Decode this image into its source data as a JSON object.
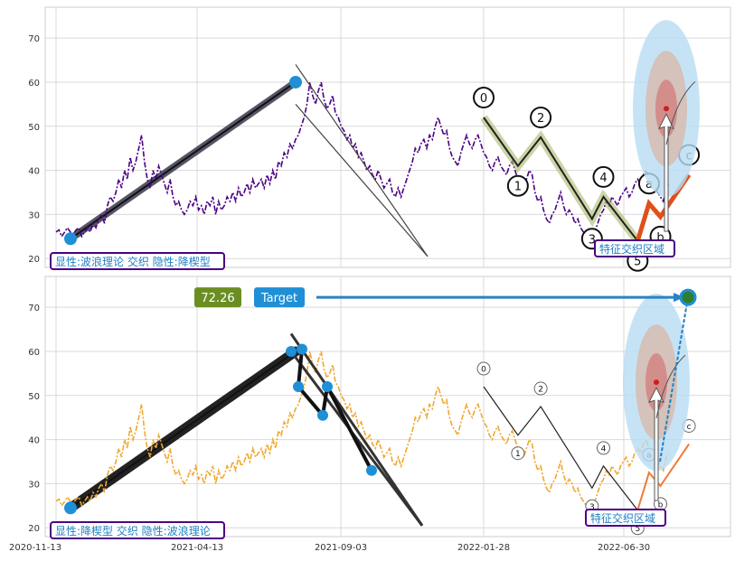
{
  "chart_data": [
    {
      "type": "line",
      "panel": "top",
      "ylim": [
        18,
        77
      ],
      "yticks": [
        20,
        30,
        40,
        50,
        60,
        70
      ],
      "grid": true,
      "price_color": "#4b0082",
      "series": [
        {
          "values": [
            26,
            26.5,
            25,
            26,
            27,
            26,
            25.5,
            26.5,
            27,
            25,
            26,
            27,
            26,
            28,
            27,
            29,
            30,
            28,
            32,
            34,
            33,
            35,
            38,
            36,
            40,
            38,
            43,
            40,
            42,
            45,
            48,
            42,
            38,
            36,
            40,
            38,
            41,
            39,
            37,
            35,
            38,
            34,
            32,
            33,
            31,
            30,
            31,
            33,
            32,
            34,
            31,
            32,
            30,
            33,
            32,
            34,
            30,
            33,
            31,
            32,
            34,
            33,
            35,
            33,
            36,
            34,
            35,
            37,
            35,
            38,
            36,
            37,
            38,
            36,
            39,
            37,
            40,
            38,
            42,
            41,
            44,
            43,
            46,
            45,
            47,
            48,
            50,
            52,
            55,
            60,
            57,
            55,
            58,
            60,
            56,
            54,
            55,
            57,
            53,
            52,
            50,
            49,
            47,
            48,
            45,
            46,
            43,
            44,
            42,
            40,
            41,
            39,
            38,
            40,
            38,
            36,
            37,
            38,
            35,
            34,
            36,
            34,
            36,
            38,
            40,
            42,
            45,
            44,
            46,
            47,
            45,
            48,
            47,
            50,
            52,
            50,
            48,
            49,
            45,
            43,
            42,
            41,
            44,
            46,
            48,
            46,
            45,
            47,
            48,
            46,
            44,
            43,
            41,
            40,
            42,
            43,
            41,
            40,
            39,
            41,
            42,
            40,
            38,
            37,
            36,
            38,
            40,
            39,
            35,
            33,
            34,
            31,
            29,
            28,
            30,
            31,
            33,
            35,
            32,
            30,
            31,
            30,
            28,
            29,
            27,
            26,
            25,
            24,
            23,
            26,
            28,
            30,
            31,
            33,
            32,
            34,
            33,
            32,
            34,
            35,
            36,
            34,
            35,
            37,
            38,
            37,
            39,
            40,
            38,
            37,
            36,
            35,
            34,
            33,
            36,
            37
          ]
        }
      ],
      "waves": {
        "labels": [
          "0",
          "1",
          "2",
          "3",
          "4",
          "5",
          "a",
          "b",
          "c"
        ],
        "values": [
          52,
          41,
          47.5,
          29,
          34,
          24,
          32.5,
          29.5,
          39
        ]
      },
      "trend_line": {
        "from": 24.5,
        "to": 60
      },
      "target_ellipse": {
        "center": 55
      },
      "labels": {
        "method": "显性:波浪理论 交织 隐性:降楔型",
        "zone": "特征交织区域"
      }
    },
    {
      "type": "line",
      "panel": "bottom",
      "ylim": [
        18,
        77
      ],
      "yticks": [
        20,
        30,
        40,
        50,
        60,
        70
      ],
      "xticks": [
        "2020-11-13",
        "2021-04-13",
        "2021-09-03",
        "2022-01-28",
        "2022-06-30"
      ],
      "grid": true,
      "price_color": "#f0a830",
      "waves": {
        "labels": [
          "0",
          "1",
          "2",
          "3",
          "4",
          "5",
          "a",
          "b",
          "c"
        ],
        "values": [
          52,
          41,
          47.5,
          29,
          34,
          24,
          32.5,
          29.5,
          39
        ]
      },
      "wedge_points": [
        60,
        60.5,
        52,
        45.5,
        52,
        33
      ],
      "trend_line": {
        "from": 24.5,
        "to": 60
      },
      "target": {
        "value": 72.26,
        "label": "Target",
        "value_text": "72.26"
      },
      "labels": {
        "method": "显性:降楔型 交织 隐性:波浪理论",
        "zone": "特征交织区域"
      }
    }
  ]
}
